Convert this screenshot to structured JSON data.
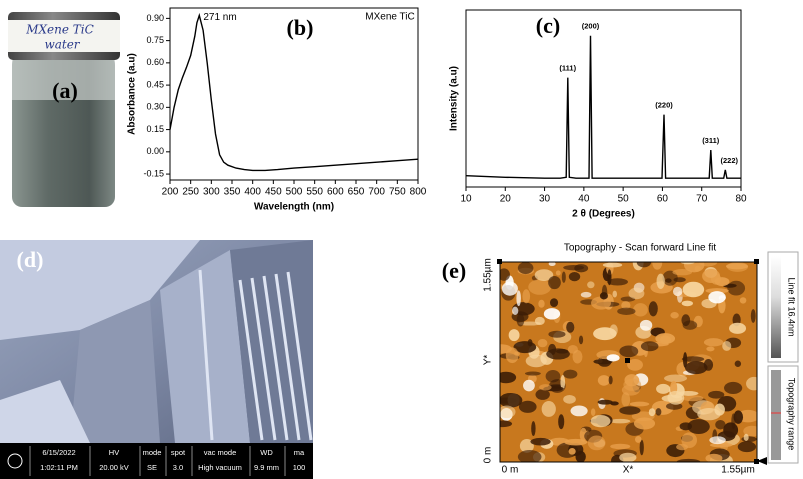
{
  "panel_labels": [
    "(a)",
    "(b)",
    "(c)",
    "(d)",
    "(e)"
  ],
  "photo_a": {
    "vial_label": [
      "MXene TiC",
      "water"
    ]
  },
  "chart_data": [
    {
      "type": "line",
      "x_label": "Wavelength (nm)",
      "y_label": "Absorbance (a.u)",
      "annotations": [
        "271 nm",
        "MXene TiC"
      ],
      "color": "#000000",
      "x": [
        200,
        210,
        220,
        230,
        240,
        250,
        260,
        265,
        271,
        280,
        290,
        300,
        310,
        320,
        330,
        340,
        360,
        380,
        400,
        430,
        460,
        500,
        550,
        600,
        650,
        700,
        750,
        800
      ],
      "values": [
        0.15,
        0.3,
        0.42,
        0.5,
        0.57,
        0.65,
        0.78,
        0.87,
        0.92,
        0.82,
        0.6,
        0.35,
        0.12,
        -0.02,
        -0.07,
        -0.09,
        -0.11,
        -0.12,
        -0.125,
        -0.125,
        -0.12,
        -0.11,
        -0.1,
        -0.09,
        -0.08,
        -0.07,
        -0.06,
        -0.05
      ],
      "xlim": [
        200,
        800
      ],
      "ylim": [
        -0.19,
        0.97
      ],
      "xticks": [
        200,
        250,
        300,
        350,
        400,
        450,
        500,
        550,
        600,
        650,
        700,
        750,
        800
      ],
      "yticks": [
        -0.15,
        {
          "value": 0,
          "label": "0.00"
        },
        0.15,
        {
          "value": 0.3,
          "label": "0.30"
        },
        0.45,
        {
          "value": 0.6,
          "label": "0.60"
        },
        0.75,
        {
          "value": 0.9,
          "label": "0.90"
        }
      ]
    },
    {
      "type": "line",
      "x_label": "2 θ (Degrees)",
      "y_label": "Intensity (a.u)",
      "color": "#000000",
      "x": [
        10,
        20,
        30,
        34,
        35.5,
        35.9,
        36.3,
        38,
        41.3,
        41.7,
        42.1,
        50,
        59.9,
        60.4,
        60.8,
        66,
        71.9,
        72.3,
        72.7,
        75.6,
        76,
        76.4,
        80
      ],
      "values": [
        7,
        6,
        5.5,
        5.5,
        6,
        68,
        6,
        5.5,
        5.5,
        94,
        5.5,
        5.5,
        5.5,
        45,
        5.5,
        5.5,
        5.5,
        23,
        5.5,
        5.5,
        10.6,
        5.5,
        5.5
      ],
      "peak_labels": [
        "(111)",
        "(200)",
        "(220)",
        "(311)",
        "(222)"
      ],
      "peak_x": [
        35.9,
        41.7,
        60.4,
        72.3,
        76
      ],
      "peak_values": [
        68,
        94,
        45,
        23,
        10.6
      ],
      "xlim": [
        10,
        80
      ],
      "ylim": [
        0,
        110
      ],
      "xticks": [
        10,
        20,
        30,
        40,
        50,
        60,
        70,
        80
      ]
    }
  ],
  "sem_d": {
    "info_bar": [
      {
        "top": "6/15/2022",
        "bottom": "1:02:11 PM"
      },
      {
        "top": "HV",
        "bottom": "20.00 kV"
      },
      {
        "top": "mode",
        "bottom": "SE"
      },
      {
        "top": "spot",
        "bottom": "3.0"
      },
      {
        "top": "vac mode",
        "bottom": "High vacuum"
      },
      {
        "top": "WD",
        "bottom": "9.9 mm"
      },
      {
        "top": "ma",
        "bottom": "100"
      }
    ]
  },
  "afm_e": {
    "title": "Topography - Scan forward   Line fit",
    "y_axis": {
      "top": "1.55µm",
      "label": "Y*",
      "bottom": "0 m"
    },
    "x_axis": {
      "left": "0 m",
      "label": "X*",
      "right": "1.55µm"
    },
    "scale_bar": {
      "top": "Line fit 16.4nm",
      "bottom": "Topography range"
    }
  }
}
